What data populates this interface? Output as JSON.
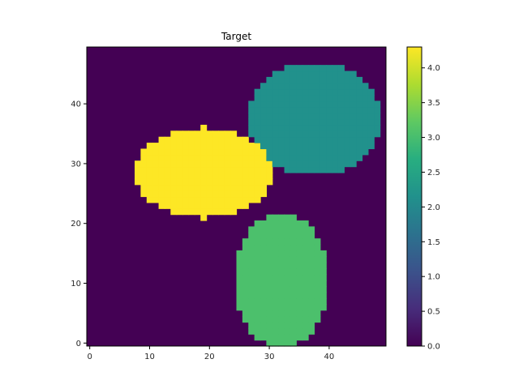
{
  "chart_data": {
    "type": "heatmap",
    "title": "Target",
    "xlabel": "",
    "ylabel": "",
    "grid_size": [
      50,
      50
    ],
    "origin": "lower",
    "xlim": [
      -0.5,
      49.5
    ],
    "ylim": [
      -0.5,
      49.5
    ],
    "x_ticks": [
      0,
      10,
      20,
      30,
      40
    ],
    "y_ticks": [
      0,
      10,
      20,
      30,
      40
    ],
    "background_value": 0.0,
    "regions": [
      {
        "label": "yellow ellipse",
        "value": 4.3,
        "center_x": 19,
        "center_y": 28.5,
        "radius_x": 11.5,
        "radius_y": 7.5
      },
      {
        "label": "teal ellipse",
        "value": 2.15,
        "center_x": 37.5,
        "center_y": 37.5,
        "radius_x": 11,
        "radius_y": 9.5
      },
      {
        "label": "green ellipse",
        "value": 3.05,
        "center_x": 32,
        "center_y": 10.5,
        "radius_x": 8,
        "radius_y": 11
      }
    ],
    "colormap": "viridis",
    "colorbar": {
      "min": 0.0,
      "max": 4.3,
      "ticks": [
        "0.0",
        "0.5",
        "1.0",
        "1.5",
        "2.0",
        "2.5",
        "3.0",
        "3.5",
        "4.0"
      ]
    },
    "grid": false
  }
}
